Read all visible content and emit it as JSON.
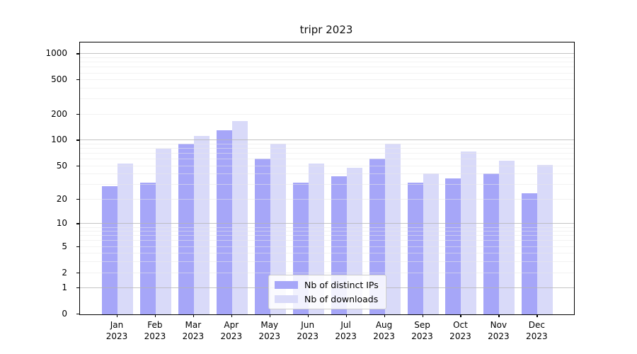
{
  "title": "tripr 2023",
  "chart_data": {
    "type": "bar",
    "title": "tripr 2023",
    "xlabel": "",
    "ylabel": "",
    "y_scale": "log1p",
    "ylim": [
      0,
      1400
    ],
    "ytick_values": [
      0,
      1,
      2,
      5,
      10,
      20,
      50,
      100,
      200,
      500,
      1000
    ],
    "ytick_labels": [
      "0",
      "1",
      "2",
      "5",
      "10",
      "20",
      "50",
      "100",
      "200",
      "500",
      "1000"
    ],
    "grid": "on",
    "legend_position": "lower center",
    "categories": [
      "Jan",
      "Feb",
      "Mar",
      "Apr",
      "May",
      "Jun",
      "Jul",
      "Aug",
      "Sep",
      "Oct",
      "Nov",
      "Dec"
    ],
    "x_year_label": "2023",
    "series": [
      {
        "name": "Nb of distinct IPs",
        "color": "#a6a6f8",
        "values": [
          29,
          32,
          91,
          131,
          62,
          32,
          38,
          62,
          32,
          36,
          41,
          24
        ]
      },
      {
        "name": "Nb of downloads",
        "color": "#d9daf9",
        "values": [
          54,
          80,
          113,
          167,
          92,
          54,
          48,
          92,
          41,
          74,
          58,
          52
        ]
      }
    ]
  },
  "colors": {
    "major_grid": "#b5b5b5",
    "minor_grid": "#e8e8e8",
    "axis": "#000000",
    "background": "#ffffff"
  }
}
